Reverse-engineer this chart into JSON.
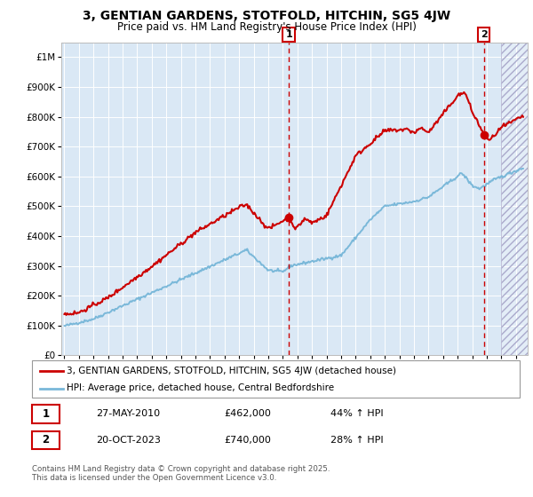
{
  "title": "3, GENTIAN GARDENS, STOTFOLD, HITCHIN, SG5 4JW",
  "subtitle": "Price paid vs. HM Land Registry's House Price Index (HPI)",
  "legend_line1": "3, GENTIAN GARDENS, STOTFOLD, HITCHIN, SG5 4JW (detached house)",
  "legend_line2": "HPI: Average price, detached house, Central Bedfordshire",
  "annotation1_date": "27-MAY-2010",
  "annotation1_price": "£462,000",
  "annotation1_hpi": "44% ↑ HPI",
  "annotation2_date": "20-OCT-2023",
  "annotation2_price": "£740,000",
  "annotation2_hpi": "28% ↑ HPI",
  "footnote": "Contains HM Land Registry data © Crown copyright and database right 2025.\nThis data is licensed under the Open Government Licence v3.0.",
  "property_color": "#cc0000",
  "hpi_color": "#7ab8d9",
  "background_color": "#dae8f5",
  "marker1_x": 2010.41,
  "marker1_y": 462000,
  "marker2_x": 2023.8,
  "marker2_y": 740000,
  "vline1_x": 2010.41,
  "vline2_x": 2023.8,
  "ylim": [
    0,
    1050000
  ],
  "xlim_start": 1994.8,
  "xlim_end": 2026.8
}
